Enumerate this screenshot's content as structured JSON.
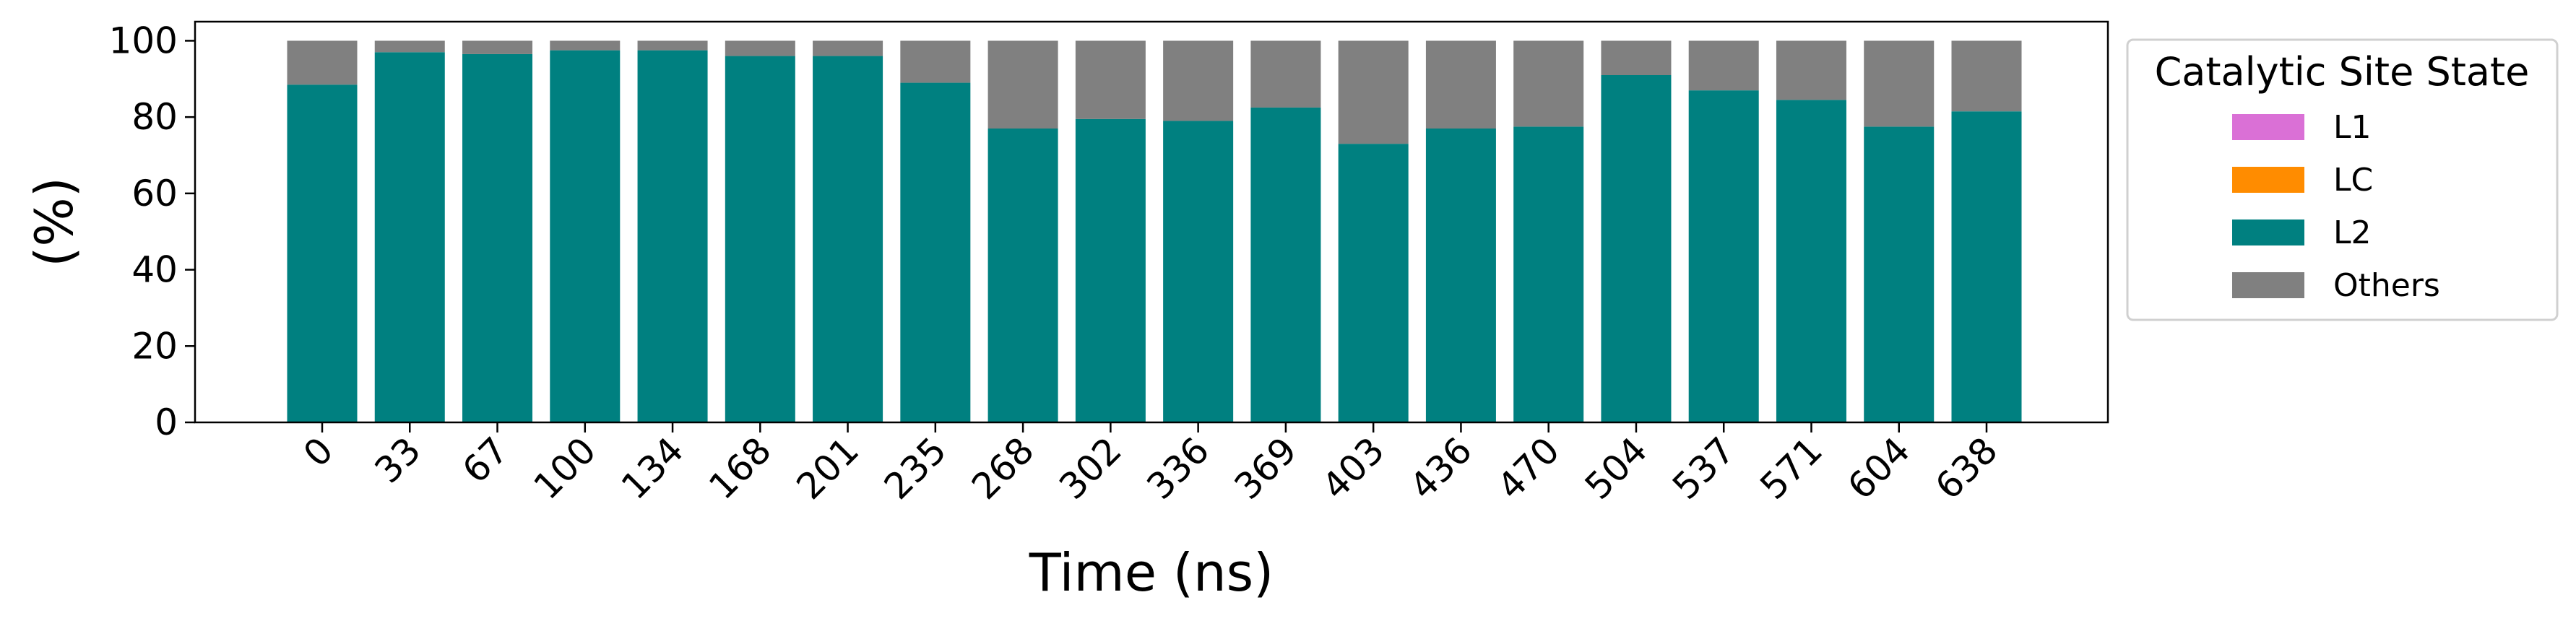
{
  "chart_data": {
    "type": "bar",
    "stacked": true,
    "title": "",
    "xlabel": "Time (ns)",
    "ylabel": "(%)",
    "ylim": [
      0,
      105
    ],
    "yticks": [
      0,
      20,
      40,
      60,
      80,
      100
    ],
    "grid": false,
    "legend_position": "outside-right-top",
    "categories": [
      "0",
      "33",
      "67",
      "100",
      "134",
      "168",
      "201",
      "235",
      "268",
      "302",
      "336",
      "369",
      "403",
      "436",
      "470",
      "504",
      "537",
      "571",
      "604",
      "638"
    ],
    "series": [
      {
        "name": "L1",
        "color": "#da70d6",
        "values": [
          0,
          0,
          0,
          0,
          0,
          0,
          0,
          0,
          0,
          0,
          0,
          0,
          0,
          0,
          0,
          0,
          0,
          0,
          0,
          0
        ]
      },
      {
        "name": "LC",
        "color": "#ff8c00",
        "values": [
          0,
          0,
          0,
          0,
          0,
          0,
          0,
          0,
          0,
          0,
          0,
          0,
          0,
          0,
          0,
          0,
          0,
          0,
          0,
          0
        ]
      },
      {
        "name": "L2",
        "color": "#008080",
        "values": [
          88.5,
          97,
          96.5,
          97.5,
          97.5,
          96,
          96,
          89,
          77,
          79.5,
          79,
          82.5,
          73,
          77,
          77.5,
          91,
          87,
          84.5,
          77.5,
          81.5
        ]
      },
      {
        "name": "Others",
        "color": "#808080",
        "values": [
          11.5,
          3,
          3.5,
          2.5,
          2.5,
          4,
          4,
          11,
          23,
          20.5,
          21,
          17.5,
          27,
          23,
          22.5,
          9,
          13,
          15.5,
          22.5,
          18.5
        ]
      }
    ],
    "legend_title": "Catalytic Site State"
  }
}
